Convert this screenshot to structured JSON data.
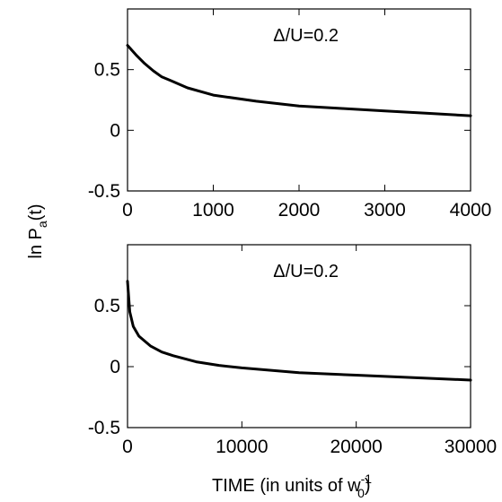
{
  "chart_data": [
    {
      "type": "line",
      "annotation": "Δ/U=0.2",
      "xlim": [
        0,
        4000
      ],
      "ylim": [
        -0.5,
        1.0
      ],
      "xticks": [
        0,
        1000,
        2000,
        3000,
        4000
      ],
      "xtick_labels": [
        "0",
        "1000",
        "2000",
        "3000",
        "4000"
      ],
      "yticks": [
        -0.5,
        0,
        0.5
      ],
      "ytick_labels": [
        "-0.5",
        "0",
        "0.5"
      ],
      "grid": false,
      "series": [
        {
          "x": [
            0,
            50,
            100,
            200,
            300,
            400,
            500,
            700,
            1000,
            1500,
            2000,
            2500,
            3000,
            3500,
            4000
          ],
          "y": [
            0.7,
            0.66,
            0.62,
            0.55,
            0.49,
            0.44,
            0.41,
            0.35,
            0.29,
            0.24,
            0.2,
            0.18,
            0.16,
            0.14,
            0.12
          ]
        }
      ]
    },
    {
      "type": "line",
      "annotation": "Δ/U=0.2",
      "xlim": [
        0,
        30000
      ],
      "ylim": [
        -0.5,
        1.0
      ],
      "xticks": [
        0,
        10000,
        20000,
        30000
      ],
      "xtick_labels": [
        "0",
        "10000",
        "20000",
        "30000"
      ],
      "yticks": [
        -0.5,
        0,
        0.5
      ],
      "ytick_labels": [
        "-0.5",
        "0",
        "0.5"
      ],
      "grid": false,
      "series": [
        {
          "x": [
            0,
            200,
            500,
            1000,
            2000,
            3000,
            4000,
            6000,
            8000,
            10000,
            15000,
            20000,
            25000,
            30000
          ],
          "y": [
            0.7,
            0.45,
            0.33,
            0.25,
            0.17,
            0.12,
            0.09,
            0.04,
            0.01,
            -0.01,
            -0.05,
            -0.07,
            -0.09,
            -0.11
          ]
        }
      ]
    }
  ],
  "ylabel": {
    "prefix": "ln P",
    "subscript": "a",
    "suffix": "(t)"
  },
  "xlabel": {
    "text": "TIME (in units of w",
    "subscript": "0",
    "superscript": "-1",
    "close": ")"
  }
}
